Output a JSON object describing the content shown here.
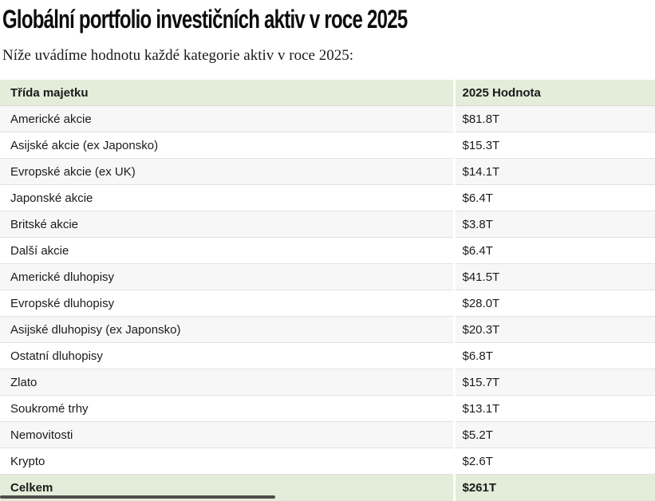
{
  "page": {
    "title": "Globální portfolio investičních aktiv v roce 2025",
    "subtitle": "Níže uvádíme hodnotu každé kategorie aktiv v roce 2025:"
  },
  "table": {
    "columns": [
      {
        "label": "Třída majetku"
      },
      {
        "label": "2025 Hodnota"
      }
    ],
    "rows": [
      {
        "label": "Americké akcie",
        "value": "$81.8T"
      },
      {
        "label": "Asijské akcie (ex Japonsko)",
        "value": "$15.3T"
      },
      {
        "label": "Evropské akcie (ex UK)",
        "value": "$14.1T"
      },
      {
        "label": "Japonské akcie",
        "value": "$6.4T"
      },
      {
        "label": "Britské akcie",
        "value": "$3.8T"
      },
      {
        "label": "Další akcie",
        "value": "$6.4T"
      },
      {
        "label": "Americké dluhopisy",
        "value": "$41.5T"
      },
      {
        "label": "Evropské dluhopisy",
        "value": "$28.0T"
      },
      {
        "label": "Asijské dluhopisy (ex Japonsko)",
        "value": "$20.3T"
      },
      {
        "label": "Ostatní dluhopisy",
        "value": "$6.8T"
      },
      {
        "label": "Zlato",
        "value": "$15.7T"
      },
      {
        "label": "Soukromé trhy",
        "value": "$13.1T"
      },
      {
        "label": "Nemovitosti",
        "value": "$5.2T"
      },
      {
        "label": "Krypto",
        "value": "$2.6T"
      }
    ],
    "total": {
      "label": "Celkem",
      "value": "$261T"
    }
  },
  "colors": {
    "header_bg": "#e3edd9",
    "alt_row_bg": "#f7f7f7",
    "row_border": "#e2e2e2",
    "header_border": "#d7d7de",
    "text": "#1b1b1b",
    "scrollbar_thumb": "#4d4d4d"
  }
}
